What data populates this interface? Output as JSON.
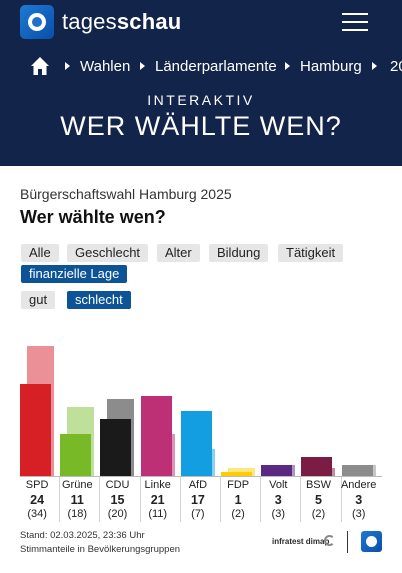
{
  "header": {
    "brand_light": "tages",
    "brand_bold": "schau",
    "logo_icon": "tagesschau-logo-icon",
    "menu_icon": "hamburger-menu-icon",
    "background": "#13244a"
  },
  "breadcrumb": {
    "home_icon": "home-icon",
    "items": [
      "Wahlen",
      "Länderparlamente",
      "Hamburg",
      "20"
    ]
  },
  "hero": {
    "kicker": "INTERAKTIV",
    "title": "WER WÄHLTE WEN?"
  },
  "content": {
    "subtitle": "Bürgerschaftswahl Hamburg 2025",
    "heading": "Wer wählte wen?"
  },
  "filters": {
    "categories": [
      "Alle",
      "Geschlecht",
      "Alter",
      "Bildung",
      "Tätigkeit",
      "finanzielle Lage"
    ],
    "active_category": "finanzielle Lage",
    "options": [
      "gut",
      "schlecht"
    ],
    "active_option": "schlecht",
    "active_color": "#0d5497"
  },
  "chart_data": {
    "type": "bar",
    "categories": [
      "SPD",
      "Grüne",
      "CDU",
      "Linke",
      "AfD",
      "FDP",
      "Volt",
      "BSW",
      "Andere"
    ],
    "series": [
      {
        "values": [
          24,
          11,
          15,
          21,
          17,
          1,
          3,
          5,
          3
        ]
      },
      {
        "values": [
          34,
          18,
          20,
          11,
          7,
          2,
          3,
          2,
          3
        ]
      }
    ],
    "value_labels": [
      "24",
      "11",
      "15",
      "21",
      "17",
      "1",
      "3",
      "5",
      "3"
    ],
    "previous_labels": [
      "(34)",
      "(18)",
      "(20)",
      "(11)",
      "(7)",
      "(2)",
      "(3)",
      "(2)",
      "(3)"
    ],
    "colors": [
      "#d71f26",
      "#78b928",
      "#1a1a1a",
      "#be3075",
      "#129ee0",
      "#ffcc00",
      "#5a2a82",
      "#7a1c44",
      "#8c8c8c"
    ],
    "light_colors": [
      "#eb9096",
      "#bfe09a",
      "#8c8c8c",
      "#de94b8",
      "#8ad0f0",
      "#ffe680",
      "#ad95c1",
      "#bd8ea2",
      "#c6c6c6"
    ],
    "ylim": [
      0,
      36
    ]
  },
  "footer": {
    "stand": "Stand: 02.03.2025, 23:36 Uhr",
    "note": "Stimmanteile in Bevölkerungsgruppen",
    "source_logo": "infratest dimap",
    "source_icon": "infratest-dimap-logo-icon",
    "ts_icon": "tagesschau-small-logo-icon"
  }
}
